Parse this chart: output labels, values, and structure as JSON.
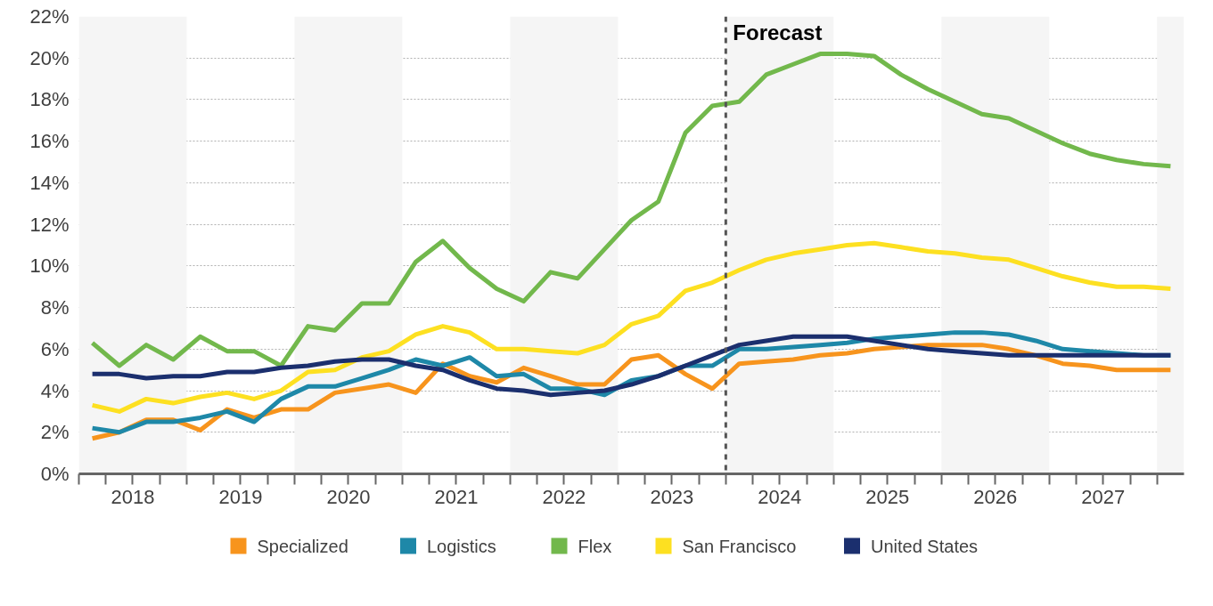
{
  "chart_data": {
    "type": "line",
    "legend": "bottom",
    "grid": "y",
    "line_style": "solid",
    "marker": "none",
    "xlim": [
      2018,
      2028.25
    ],
    "ylim": [
      0,
      22
    ],
    "yticks": [
      {
        "value": 0,
        "label": "0%"
      },
      {
        "value": 2,
        "label": "2%"
      },
      {
        "value": 4,
        "label": "4%"
      },
      {
        "value": 6,
        "label": "6%"
      },
      {
        "value": 8,
        "label": "8%"
      },
      {
        "value": 10,
        "label": "10%"
      },
      {
        "value": 12,
        "label": "12%"
      },
      {
        "value": 14,
        "label": "14%"
      },
      {
        "value": 16,
        "label": "16%"
      },
      {
        "value": 18,
        "label": "18%"
      },
      {
        "value": 20,
        "label": "20%"
      },
      {
        "value": 22,
        "label": "22%"
      }
    ],
    "xticks": [
      {
        "value": 2018,
        "label": null
      },
      {
        "value": 2018.25,
        "label": null
      },
      {
        "value": 2018.5,
        "label": "2018"
      },
      {
        "value": 2018.75,
        "label": null
      },
      {
        "value": 2019,
        "label": null
      },
      {
        "value": 2019.25,
        "label": null
      },
      {
        "value": 2019.5,
        "label": "2019"
      },
      {
        "value": 2019.75,
        "label": null
      },
      {
        "value": 2020,
        "label": null
      },
      {
        "value": 2020.25,
        "label": null
      },
      {
        "value": 2020.5,
        "label": "2020"
      },
      {
        "value": 2020.75,
        "label": null
      },
      {
        "value": 2021,
        "label": null
      },
      {
        "value": 2021.25,
        "label": null
      },
      {
        "value": 2021.5,
        "label": "2021"
      },
      {
        "value": 2021.75,
        "label": null
      },
      {
        "value": 2022,
        "label": null
      },
      {
        "value": 2022.25,
        "label": null
      },
      {
        "value": 2022.5,
        "label": "2022"
      },
      {
        "value": 2022.75,
        "label": null
      },
      {
        "value": 2023,
        "label": null
      },
      {
        "value": 2023.25,
        "label": null
      },
      {
        "value": 2023.5,
        "label": "2023"
      },
      {
        "value": 2023.75,
        "label": null
      },
      {
        "value": 2024,
        "label": null
      },
      {
        "value": 2024.25,
        "label": null
      },
      {
        "value": 2024.5,
        "label": "2024"
      },
      {
        "value": 2024.75,
        "label": null
      },
      {
        "value": 2025,
        "label": null
      },
      {
        "value": 2025.25,
        "label": null
      },
      {
        "value": 2025.5,
        "label": "2025"
      },
      {
        "value": 2025.75,
        "label": null
      },
      {
        "value": 2026,
        "label": null
      },
      {
        "value": 2026.25,
        "label": null
      },
      {
        "value": 2026.5,
        "label": "2026"
      },
      {
        "value": 2026.75,
        "label": null
      },
      {
        "value": 2027,
        "label": null
      },
      {
        "value": 2027.25,
        "label": null
      },
      {
        "value": 2027.5,
        "label": "2027"
      },
      {
        "value": 2027.75,
        "label": null
      },
      {
        "value": 2028,
        "label": null
      }
    ],
    "x": [
      2018.125,
      2018.375,
      2018.625,
      2018.875,
      2019.125,
      2019.375,
      2019.625,
      2019.875,
      2020.125,
      2020.375,
      2020.625,
      2020.875,
      2021.125,
      2021.375,
      2021.625,
      2021.875,
      2022.125,
      2022.375,
      2022.625,
      2022.875,
      2023.125,
      2023.375,
      2023.625,
      2023.875,
      2024.125,
      2024.375,
      2024.625,
      2024.875,
      2025.125,
      2025.375,
      2025.625,
      2025.875,
      2026.125,
      2026.375,
      2026.625,
      2026.875,
      2027.125,
      2027.375,
      2027.625,
      2027.875,
      2028.125
    ],
    "bands": [
      {
        "axis": "x",
        "from": 2018,
        "to": 2019,
        "color": "#f5f5f5"
      },
      {
        "axis": "x",
        "from": 2020,
        "to": 2021,
        "color": "#f5f5f5"
      },
      {
        "axis": "x",
        "from": 2022,
        "to": 2023,
        "color": "#f5f5f5"
      },
      {
        "axis": "x",
        "from": 2024,
        "to": 2025,
        "color": "#f5f5f5"
      },
      {
        "axis": "x",
        "from": 2026,
        "to": 2027,
        "color": "#f5f5f5"
      },
      {
        "axis": "x",
        "from": 2028,
        "to": 2028.25,
        "color": "#f5f5f5"
      }
    ],
    "ref_lines": [
      {
        "axis": "x",
        "value": 2024,
        "label": "Forecast",
        "color": "#555555",
        "line_style": "dashed"
      }
    ],
    "series": [
      {
        "name": "Specialized",
        "color": "#f7941d",
        "values": [
          1.7,
          2.0,
          2.6,
          2.6,
          2.1,
          3.1,
          2.7,
          3.1,
          3.1,
          3.9,
          4.1,
          4.3,
          3.9,
          5.3,
          4.7,
          4.4,
          5.1,
          4.7,
          4.3,
          4.3,
          5.5,
          5.7,
          4.8,
          4.1,
          5.3,
          5.4,
          5.5,
          5.7,
          5.8,
          6.0,
          6.1,
          6.2,
          6.2,
          6.2,
          6.0,
          5.7,
          5.3,
          5.2,
          5.0,
          5.0,
          5.0
        ]
      },
      {
        "name": "Logistics",
        "color": "#1e88a8",
        "values": [
          2.2,
          2.0,
          2.5,
          2.5,
          2.7,
          3.0,
          2.5,
          3.6,
          4.2,
          4.2,
          4.6,
          5.0,
          5.5,
          5.2,
          5.6,
          4.7,
          4.8,
          4.1,
          4.1,
          3.8,
          4.5,
          4.7,
          5.2,
          5.2,
          6.0,
          6.0,
          6.1,
          6.2,
          6.3,
          6.5,
          6.6,
          6.7,
          6.8,
          6.8,
          6.7,
          6.4,
          6.0,
          5.9,
          5.8,
          5.7,
          5.7
        ]
      },
      {
        "name": "Flex",
        "color": "#72b84c",
        "values": [
          6.3,
          5.2,
          6.2,
          5.5,
          6.6,
          5.9,
          5.9,
          5.2,
          7.1,
          6.9,
          8.2,
          8.2,
          10.2,
          11.2,
          9.9,
          8.9,
          8.3,
          9.7,
          9.4,
          10.8,
          12.2,
          13.1,
          16.4,
          17.7,
          17.9,
          19.2,
          19.7,
          20.2,
          20.2,
          20.1,
          19.2,
          18.5,
          17.9,
          17.3,
          17.1,
          16.5,
          15.9,
          15.4,
          15.1,
          14.9,
          14.8
        ]
      },
      {
        "name": "San Francisco",
        "color": "#fde021",
        "values": [
          3.3,
          3.0,
          3.6,
          3.4,
          3.7,
          3.9,
          3.6,
          4.0,
          4.9,
          5.0,
          5.6,
          5.9,
          6.7,
          7.1,
          6.8,
          6.0,
          6.0,
          5.9,
          5.8,
          6.2,
          7.2,
          7.6,
          8.8,
          9.2,
          9.8,
          10.3,
          10.6,
          10.8,
          11.0,
          11.1,
          10.9,
          10.7,
          10.6,
          10.4,
          10.3,
          9.9,
          9.5,
          9.2,
          9.0,
          9.0,
          8.9
        ]
      },
      {
        "name": "United States",
        "color": "#1b2f6e",
        "values": [
          4.8,
          4.8,
          4.6,
          4.7,
          4.7,
          4.9,
          4.9,
          5.1,
          5.2,
          5.4,
          5.5,
          5.5,
          5.2,
          5.0,
          4.5,
          4.1,
          4.0,
          3.8,
          3.9,
          4.0,
          4.3,
          4.7,
          5.2,
          5.7,
          6.2,
          6.4,
          6.6,
          6.6,
          6.6,
          6.4,
          6.2,
          6.0,
          5.9,
          5.8,
          5.7,
          5.7,
          5.7,
          5.7,
          5.7,
          5.7,
          5.7
        ]
      }
    ]
  }
}
